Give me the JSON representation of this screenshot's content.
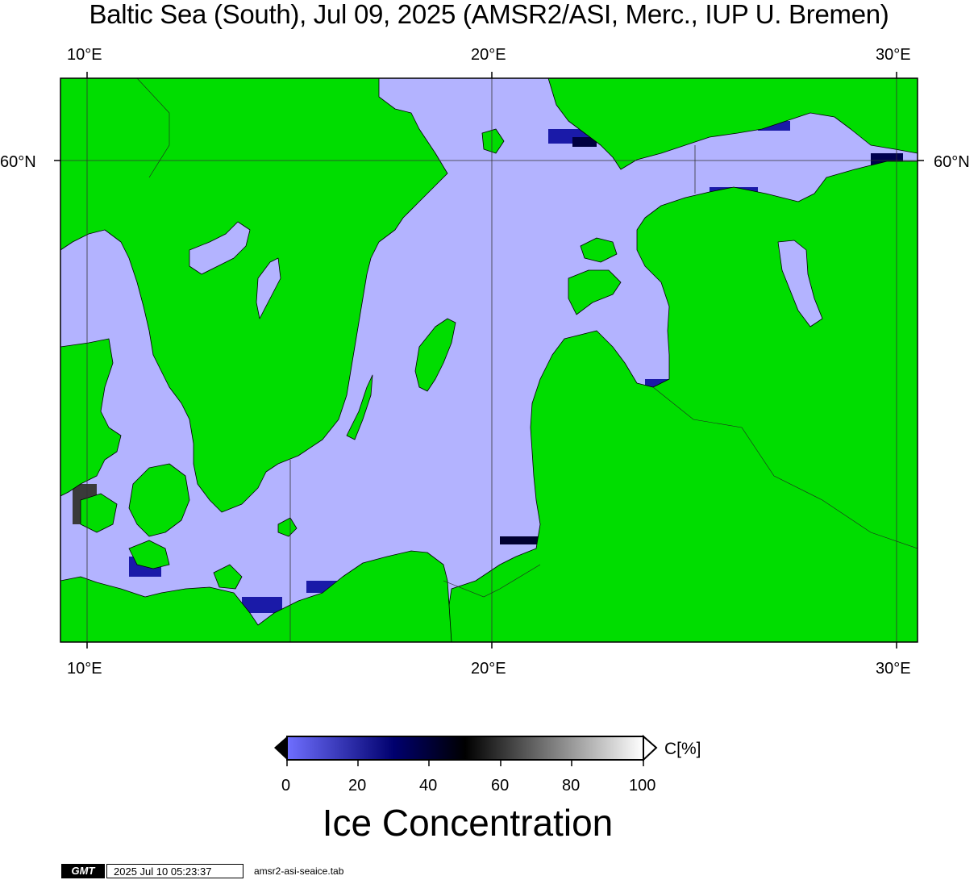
{
  "title": "Baltic Sea (South), Jul 09, 2025 (AMSR2/ASI, Merc., IUP U. Bremen)",
  "map": {
    "longitude_ticks": [
      "10°E",
      "20°E",
      "30°E"
    ],
    "latitude_ticks": [
      "60°N",
      "60°N"
    ],
    "colors": {
      "land": "#00dd00",
      "water_low_ice": "#b3b3ff",
      "gridline": "#333333"
    }
  },
  "colorbar": {
    "ticks": [
      "0",
      "20",
      "40",
      "60",
      "80",
      "100"
    ],
    "unit": "C[%]",
    "title": "Ice Concentration",
    "gradient_colors": [
      "#6f6fff",
      "#00006e",
      "#000000",
      "#ffffff"
    ]
  },
  "footer": {
    "logo": "GMT",
    "timestamp": "2025 Jul 10 05:23:37",
    "script": "amsr2-asi-seaice.tab"
  }
}
